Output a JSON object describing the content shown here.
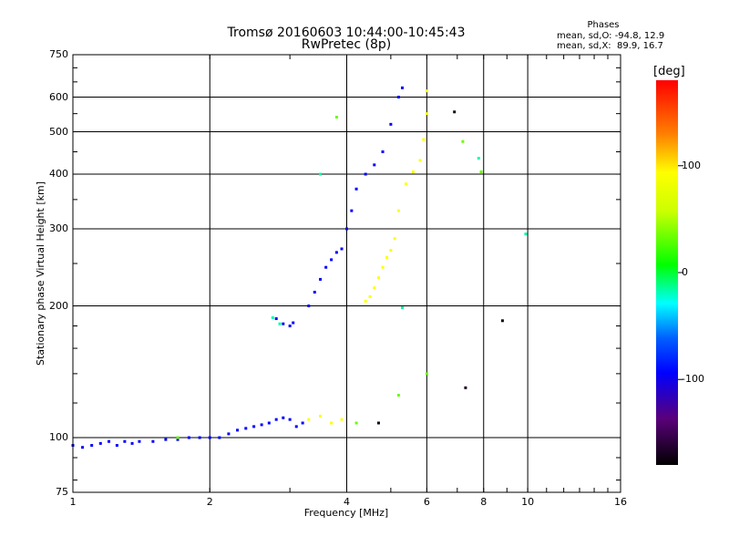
{
  "chart_data": {
    "type": "scatter",
    "title": "Tromsø 20160603 10:44:00-10:45:43",
    "subtitle": "RwPretec (8p)",
    "xlabel": "Frequency [MHz]",
    "ylabel": "Stationary phase Virtual Height [km]",
    "x_scale": "log",
    "y_scale": "log",
    "xlim": [
      1,
      16
    ],
    "ylim": [
      75,
      750
    ],
    "x_ticks": [
      "1",
      "2",
      "4",
      "6",
      "8",
      "10",
      "16"
    ],
    "x_tick_values": [
      1,
      2,
      4,
      6,
      8,
      10,
      16
    ],
    "y_ticks": [
      "75",
      "100",
      "200",
      "300",
      "400",
      "500",
      "600",
      "750"
    ],
    "y_tick_values": [
      75,
      100,
      200,
      300,
      400,
      500,
      600,
      750
    ],
    "grid": true,
    "phase_box": {
      "heading": "Phases",
      "line_o": "mean, sd,O: -94.8, 12.9",
      "line_x": "mean, sd,X:  89.9, 16.7"
    },
    "colorbar": {
      "label": "[deg]",
      "range": [
        -180,
        180
      ],
      "ticks": [
        "100",
        "0",
        "-100"
      ],
      "tick_values": [
        100,
        0,
        -100
      ]
    },
    "series": [
      {
        "points": [
          [
            1.0,
            96
          ],
          [
            1.05,
            95
          ],
          [
            1.1,
            96
          ],
          [
            1.15,
            97
          ],
          [
            1.2,
            98
          ],
          [
            1.25,
            96
          ],
          [
            1.3,
            98
          ],
          [
            1.35,
            97
          ],
          [
            1.4,
            98
          ],
          [
            1.5,
            98
          ],
          [
            1.6,
            99
          ],
          [
            1.7,
            99
          ],
          [
            1.8,
            100
          ],
          [
            1.9,
            100
          ],
          [
            2.0,
            100
          ],
          [
            2.1,
            100
          ],
          [
            2.2,
            102
          ],
          [
            2.3,
            104
          ],
          [
            2.4,
            105
          ],
          [
            2.5,
            106
          ],
          [
            2.6,
            107
          ],
          [
            2.7,
            108
          ],
          [
            2.8,
            110
          ],
          [
            2.9,
            111
          ],
          [
            3.0,
            110
          ],
          [
            3.1,
            106
          ],
          [
            3.2,
            108
          ],
          [
            2.8,
            187
          ],
          [
            2.9,
            182
          ],
          [
            3.0,
            180
          ],
          [
            3.05,
            183
          ],
          [
            3.3,
            200
          ],
          [
            3.4,
            215
          ],
          [
            3.5,
            230
          ],
          [
            3.6,
            245
          ],
          [
            3.7,
            255
          ],
          [
            3.8,
            265
          ],
          [
            3.9,
            270
          ],
          [
            4.0,
            300
          ],
          [
            4.1,
            330
          ],
          [
            4.2,
            370
          ],
          [
            4.4,
            400
          ],
          [
            4.6,
            420
          ],
          [
            4.8,
            450
          ],
          [
            5.0,
            520
          ],
          [
            5.2,
            600
          ],
          [
            5.3,
            630
          ]
        ],
        "phase_deg": -100
      },
      {
        "points": [
          [
            3.3,
            110
          ],
          [
            3.5,
            112
          ],
          [
            3.7,
            108
          ],
          [
            3.9,
            110
          ],
          [
            4.4,
            205
          ],
          [
            4.5,
            210
          ],
          [
            4.6,
            220
          ],
          [
            4.7,
            232
          ],
          [
            4.8,
            245
          ],
          [
            4.9,
            258
          ],
          [
            5.0,
            268
          ],
          [
            5.1,
            285
          ],
          [
            5.2,
            330
          ],
          [
            5.4,
            380
          ],
          [
            5.6,
            405
          ],
          [
            5.8,
            430
          ],
          [
            5.9,
            480
          ],
          [
            6.0,
            550
          ],
          [
            6.0,
            620
          ]
        ],
        "phase_deg": 100
      },
      {
        "points": [
          [
            3.5,
            400
          ],
          [
            2.85,
            182
          ],
          [
            2.75,
            188
          ],
          [
            5.3,
            198
          ],
          [
            7.8,
            435
          ],
          [
            9.9,
            292
          ]
        ],
        "phase_deg": -20
      },
      {
        "points": [
          [
            7.3,
            130
          ],
          [
            8.8,
            185
          ],
          [
            6.9,
            555
          ],
          [
            4.7,
            108
          ]
        ],
        "phase_deg": -170
      },
      {
        "points": [
          [
            3.8,
            540
          ],
          [
            6.0,
            140
          ],
          [
            5.2,
            125
          ],
          [
            7.2,
            475
          ],
          [
            7.9,
            405
          ],
          [
            4.2,
            108
          ],
          [
            1.7,
            100
          ]
        ],
        "phase_deg": 30
      }
    ]
  }
}
